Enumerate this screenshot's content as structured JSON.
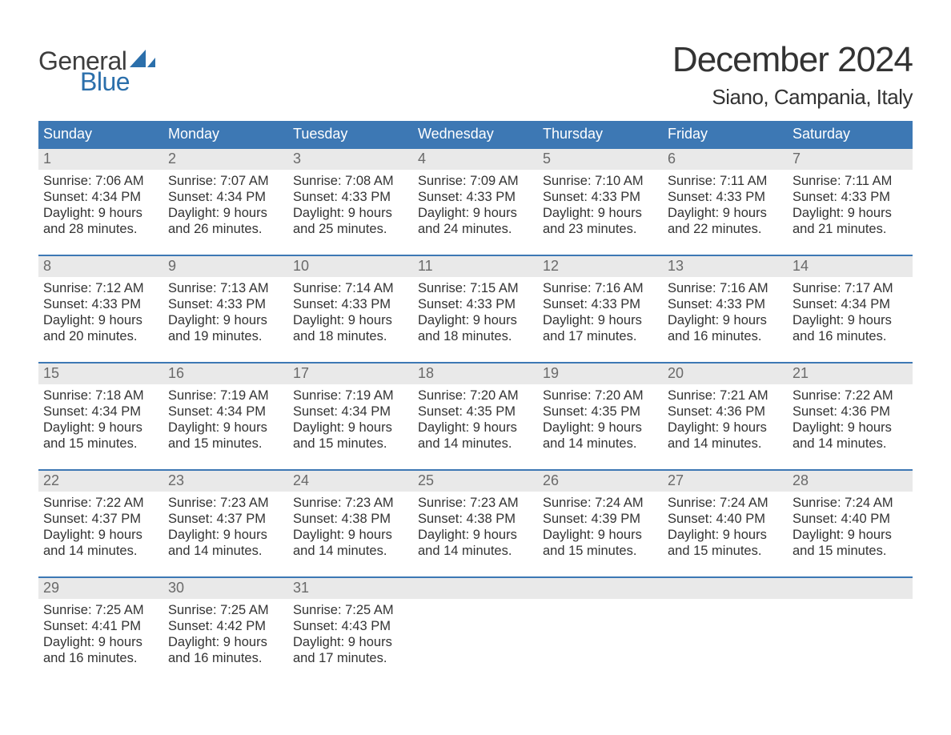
{
  "colors": {
    "header_bg": "#3d78b4",
    "header_text": "#ffffff",
    "daynum_bg": "#e9e9e9",
    "daynum_text": "#6a6a6a",
    "body_text": "#333333",
    "week_border": "#3d78b4",
    "logo_gray": "#3d3d3d",
    "logo_blue": "#2b6fab",
    "page_bg": "#ffffff"
  },
  "typography": {
    "title_fontsize": 44,
    "location_fontsize": 26,
    "dow_fontsize": 18,
    "daynum_fontsize": 18,
    "body_fontsize": 16.5,
    "font_family": "Arial"
  },
  "logo": {
    "line1": "General",
    "line2": "Blue"
  },
  "title": "December 2024",
  "location": "Siano, Campania, Italy",
  "days_of_week": [
    "Sunday",
    "Monday",
    "Tuesday",
    "Wednesday",
    "Thursday",
    "Friday",
    "Saturday"
  ],
  "labels": {
    "sunrise": "Sunrise:",
    "sunset": "Sunset:",
    "daylight": "Daylight:",
    "hours": "hours",
    "and": "and",
    "minutes": "minutes."
  },
  "weeks": [
    [
      {
        "n": 1,
        "sr": "7:06 AM",
        "ss": "4:34 PM",
        "dh": 9,
        "dm": 28
      },
      {
        "n": 2,
        "sr": "7:07 AM",
        "ss": "4:34 PM",
        "dh": 9,
        "dm": 26
      },
      {
        "n": 3,
        "sr": "7:08 AM",
        "ss": "4:33 PM",
        "dh": 9,
        "dm": 25
      },
      {
        "n": 4,
        "sr": "7:09 AM",
        "ss": "4:33 PM",
        "dh": 9,
        "dm": 24
      },
      {
        "n": 5,
        "sr": "7:10 AM",
        "ss": "4:33 PM",
        "dh": 9,
        "dm": 23
      },
      {
        "n": 6,
        "sr": "7:11 AM",
        "ss": "4:33 PM",
        "dh": 9,
        "dm": 22
      },
      {
        "n": 7,
        "sr": "7:11 AM",
        "ss": "4:33 PM",
        "dh": 9,
        "dm": 21
      }
    ],
    [
      {
        "n": 8,
        "sr": "7:12 AM",
        "ss": "4:33 PM",
        "dh": 9,
        "dm": 20
      },
      {
        "n": 9,
        "sr": "7:13 AM",
        "ss": "4:33 PM",
        "dh": 9,
        "dm": 19
      },
      {
        "n": 10,
        "sr": "7:14 AM",
        "ss": "4:33 PM",
        "dh": 9,
        "dm": 18
      },
      {
        "n": 11,
        "sr": "7:15 AM",
        "ss": "4:33 PM",
        "dh": 9,
        "dm": 18
      },
      {
        "n": 12,
        "sr": "7:16 AM",
        "ss": "4:33 PM",
        "dh": 9,
        "dm": 17
      },
      {
        "n": 13,
        "sr": "7:16 AM",
        "ss": "4:33 PM",
        "dh": 9,
        "dm": 16
      },
      {
        "n": 14,
        "sr": "7:17 AM",
        "ss": "4:34 PM",
        "dh": 9,
        "dm": 16
      }
    ],
    [
      {
        "n": 15,
        "sr": "7:18 AM",
        "ss": "4:34 PM",
        "dh": 9,
        "dm": 15
      },
      {
        "n": 16,
        "sr": "7:19 AM",
        "ss": "4:34 PM",
        "dh": 9,
        "dm": 15
      },
      {
        "n": 17,
        "sr": "7:19 AM",
        "ss": "4:34 PM",
        "dh": 9,
        "dm": 15
      },
      {
        "n": 18,
        "sr": "7:20 AM",
        "ss": "4:35 PM",
        "dh": 9,
        "dm": 14
      },
      {
        "n": 19,
        "sr": "7:20 AM",
        "ss": "4:35 PM",
        "dh": 9,
        "dm": 14
      },
      {
        "n": 20,
        "sr": "7:21 AM",
        "ss": "4:36 PM",
        "dh": 9,
        "dm": 14
      },
      {
        "n": 21,
        "sr": "7:22 AM",
        "ss": "4:36 PM",
        "dh": 9,
        "dm": 14
      }
    ],
    [
      {
        "n": 22,
        "sr": "7:22 AM",
        "ss": "4:37 PM",
        "dh": 9,
        "dm": 14
      },
      {
        "n": 23,
        "sr": "7:23 AM",
        "ss": "4:37 PM",
        "dh": 9,
        "dm": 14
      },
      {
        "n": 24,
        "sr": "7:23 AM",
        "ss": "4:38 PM",
        "dh": 9,
        "dm": 14
      },
      {
        "n": 25,
        "sr": "7:23 AM",
        "ss": "4:38 PM",
        "dh": 9,
        "dm": 14
      },
      {
        "n": 26,
        "sr": "7:24 AM",
        "ss": "4:39 PM",
        "dh": 9,
        "dm": 15
      },
      {
        "n": 27,
        "sr": "7:24 AM",
        "ss": "4:40 PM",
        "dh": 9,
        "dm": 15
      },
      {
        "n": 28,
        "sr": "7:24 AM",
        "ss": "4:40 PM",
        "dh": 9,
        "dm": 15
      }
    ],
    [
      {
        "n": 29,
        "sr": "7:25 AM",
        "ss": "4:41 PM",
        "dh": 9,
        "dm": 16
      },
      {
        "n": 30,
        "sr": "7:25 AM",
        "ss": "4:42 PM",
        "dh": 9,
        "dm": 16
      },
      {
        "n": 31,
        "sr": "7:25 AM",
        "ss": "4:43 PM",
        "dh": 9,
        "dm": 17
      },
      null,
      null,
      null,
      null
    ]
  ]
}
